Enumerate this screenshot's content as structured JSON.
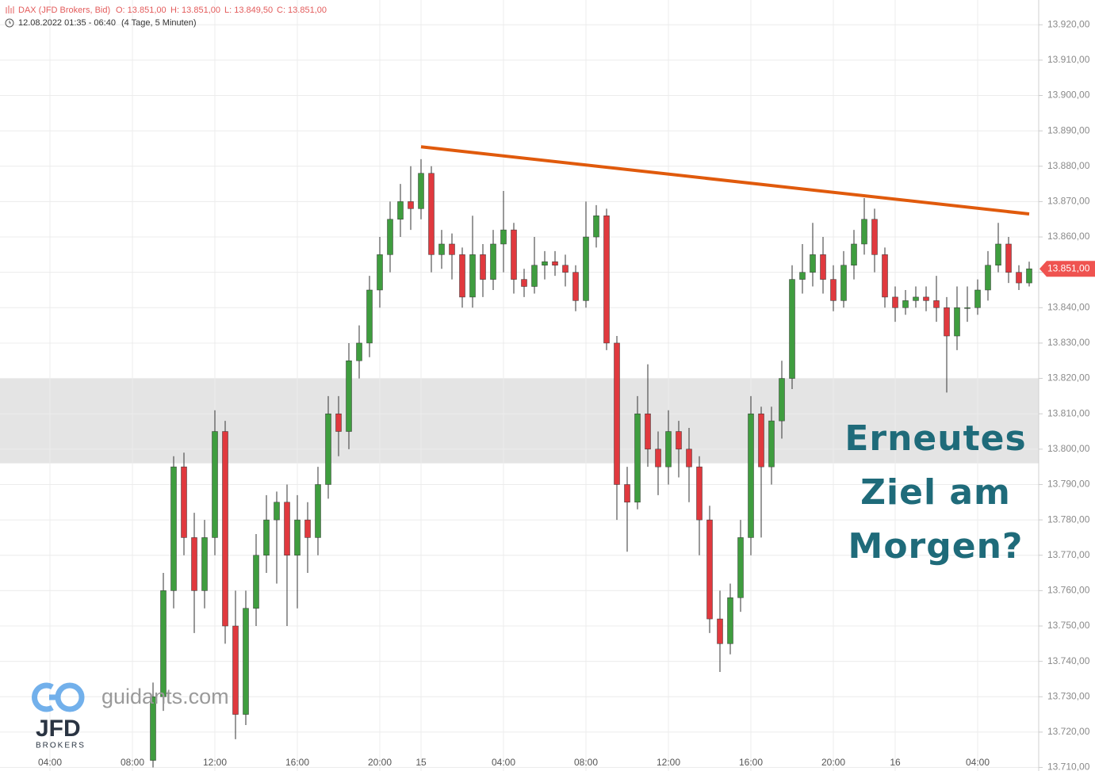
{
  "chart_data": {
    "type": "candlestick",
    "header": {
      "symbol": "DAX (JFD Brokers, Bid)",
      "open": "O: 13.851,00",
      "high": "H: 13.851,00",
      "low": "L: 13.849,50",
      "close": "C: 13.851,00",
      "range": "12.08.2022 01:35 - 06:40",
      "span": "(4 Tage, 5 Minuten)"
    },
    "categories": [
      null,
      null,
      null,
      null,
      "04:00",
      null,
      null,
      null,
      null,
      null,
      null,
      null,
      "08:00",
      null,
      null,
      null,
      null,
      null,
      null,
      null,
      "12:00",
      null,
      null,
      null,
      null,
      null,
      null,
      null,
      "16:00",
      null,
      null,
      null,
      null,
      null,
      null,
      null,
      "20:00",
      null,
      null,
      null,
      "15",
      null,
      null,
      null,
      null,
      null,
      null,
      null,
      "04:00",
      null,
      null,
      null,
      null,
      null,
      null,
      null,
      "08:00",
      null,
      null,
      null,
      null,
      null,
      null,
      null,
      "12:00",
      null,
      null,
      null,
      null,
      null,
      null,
      null,
      "16:00",
      null,
      null,
      null,
      null,
      null,
      null,
      null,
      "20:00",
      null,
      null,
      null,
      null,
      null,
      "16",
      null,
      null,
      null,
      null,
      null,
      null,
      null,
      "04:00",
      null,
      null,
      null,
      null,
      null
    ],
    "open": [
      null,
      null,
      null,
      null,
      null,
      null,
      null,
      null,
      null,
      null,
      null,
      null,
      null,
      null,
      13712,
      13730,
      13760,
      13795,
      13775,
      13760,
      13775,
      13805,
      13750,
      13725,
      13755,
      13770,
      13780,
      13785,
      13770,
      13780,
      13775,
      13790,
      13810,
      13805,
      13825,
      13830,
      13845,
      13855,
      13865,
      13870,
      13868,
      13878,
      13855,
      13858,
      13855,
      13843,
      13855,
      13848,
      13858,
      13862,
      13848,
      13846,
      13852,
      13853,
      13852,
      13850,
      13842,
      13860,
      13866,
      13830,
      13790,
      13785,
      13810,
      13800,
      13795,
      13805,
      13800,
      13795,
      13780,
      13752,
      13745,
      13758,
      13775,
      13810,
      13795,
      13808,
      13820,
      13848,
      13850,
      13855,
      13848,
      13842,
      13852,
      13858,
      13865,
      13855,
      13843,
      13840,
      13842,
      13843,
      13842,
      13840,
      13832,
      13840,
      13840,
      13845,
      13852,
      13858,
      13850,
      13847
    ],
    "high": [
      null,
      null,
      null,
      null,
      null,
      null,
      null,
      null,
      null,
      null,
      null,
      null,
      null,
      null,
      13734,
      13765,
      13798,
      13799,
      13782,
      13780,
      13811,
      13808,
      13760,
      13760,
      13776,
      13787,
      13788,
      13790,
      13787,
      13785,
      13795,
      13815,
      13815,
      13830,
      13835,
      13849,
      13860,
      13870,
      13875,
      13880,
      13882,
      13880,
      13862,
      13861,
      13857,
      13866,
      13858,
      13862,
      13873,
      13864,
      13851,
      13860,
      13856,
      13856,
      13855,
      13852,
      13870,
      13869,
      13868,
      13832,
      13795,
      13815,
      13824,
      13805,
      13811,
      13808,
      13806,
      13798,
      13784,
      13760,
      13762,
      13780,
      13815,
      13812,
      13812,
      13825,
      13852,
      13858,
      13864,
      13860,
      13852,
      13856,
      13862,
      13871,
      13868,
      13857,
      13846,
      13845,
      13846,
      13846,
      13849,
      13843,
      13846,
      13846,
      13848,
      13856,
      13864,
      13860,
      13852,
      13853
    ],
    "low": [
      null,
      null,
      null,
      null,
      null,
      null,
      null,
      null,
      null,
      null,
      null,
      null,
      null,
      null,
      13710,
      13726,
      13755,
      13770,
      13748,
      13755,
      13770,
      13745,
      13718,
      13722,
      13750,
      13765,
      13762,
      13750,
      13755,
      13765,
      13770,
      13786,
      13798,
      13800,
      13820,
      13826,
      13840,
      13850,
      13860,
      13862,
      13865,
      13850,
      13851,
      13848,
      13840,
      13840,
      13843,
      13845,
      13850,
      13844,
      13843,
      13844,
      13848,
      13849,
      13846,
      13839,
      13840,
      13857,
      13828,
      13780,
      13771,
      13783,
      13795,
      13787,
      13790,
      13792,
      13785,
      13770,
      13748,
      13737,
      13742,
      13754,
      13770,
      13775,
      13790,
      13803,
      13817,
      13844,
      13846,
      13844,
      13839,
      13840,
      13848,
      13855,
      13850,
      13840,
      13836,
      13838,
      13840,
      13839,
      13836,
      13816,
      13828,
      13836,
      13838,
      13842,
      13850,
      13847,
      13845,
      13846
    ],
    "close": [
      null,
      null,
      null,
      null,
      null,
      null,
      null,
      null,
      null,
      null,
      null,
      null,
      null,
      null,
      13730,
      13760,
      13795,
      13775,
      13760,
      13775,
      13805,
      13750,
      13725,
      13755,
      13770,
      13780,
      13785,
      13770,
      13780,
      13775,
      13790,
      13810,
      13805,
      13825,
      13830,
      13845,
      13855,
      13865,
      13870,
      13868,
      13878,
      13855,
      13858,
      13855,
      13843,
      13855,
      13848,
      13858,
      13862,
      13848,
      13846,
      13852,
      13853,
      13852,
      13850,
      13842,
      13860,
      13866,
      13830,
      13790,
      13785,
      13810,
      13800,
      13795,
      13805,
      13800,
      13795,
      13780,
      13752,
      13745,
      13758,
      13775,
      13810,
      13795,
      13808,
      13820,
      13848,
      13850,
      13855,
      13848,
      13842,
      13852,
      13858,
      13865,
      13855,
      13843,
      13840,
      13842,
      13843,
      13842,
      13840,
      13832,
      13840,
      13840,
      13845,
      13852,
      13858,
      13850,
      13847,
      13851
    ],
    "up_color": "#3f9d3f",
    "down_color": "#e0393e",
    "ylim": [
      13709,
      13927
    ],
    "yticks": [
      {
        "value": 13710,
        "label": "13.710,00"
      },
      {
        "value": 13720,
        "label": "13.720,00"
      },
      {
        "value": 13730,
        "label": "13.730,00"
      },
      {
        "value": 13740,
        "label": "13.740,00"
      },
      {
        "value": 13750,
        "label": "13.750,00"
      },
      {
        "value": 13760,
        "label": "13.760,00"
      },
      {
        "value": 13770,
        "label": "13.770,00"
      },
      {
        "value": 13780,
        "label": "13.780,00"
      },
      {
        "value": 13790,
        "label": "13.790,00"
      },
      {
        "value": 13800,
        "label": "13.800,00"
      },
      {
        "value": 13810,
        "label": "13.810,00"
      },
      {
        "value": 13820,
        "label": "13.820,00"
      },
      {
        "value": 13830,
        "label": "13.830,00"
      },
      {
        "value": 13840,
        "label": "13.840,00"
      },
      {
        "value": 13850,
        "label": "13.850,00"
      },
      {
        "value": 13860,
        "label": "13.860,00"
      },
      {
        "value": 13870,
        "label": "13.870,00"
      },
      {
        "value": 13880,
        "label": "13.880,00"
      },
      {
        "value": 13890,
        "label": "13.890,00"
      },
      {
        "value": 13900,
        "label": "13.900,00"
      },
      {
        "value": 13910,
        "label": "13.910,00"
      },
      {
        "value": 13920,
        "label": "13.920,00"
      }
    ],
    "grid": true,
    "last_price": {
      "value": 13851,
      "label": "13.851,00",
      "color": "#ef5350"
    },
    "zone": {
      "low": 13796,
      "high": 13820,
      "color": "#e4e4e4"
    },
    "trendline": {
      "start_index": 40,
      "start_value": 13885.5,
      "end_index": 99,
      "end_value": 13866.5,
      "color": "#e05a0c"
    },
    "annotation": {
      "lines": [
        "Erneutes",
        "Ziel am",
        "Morgen?"
      ],
      "color": "#1f6b7a"
    },
    "watermark": {
      "site": "guidants.com",
      "brand": "JFD",
      "sub": "BROKERS"
    }
  }
}
